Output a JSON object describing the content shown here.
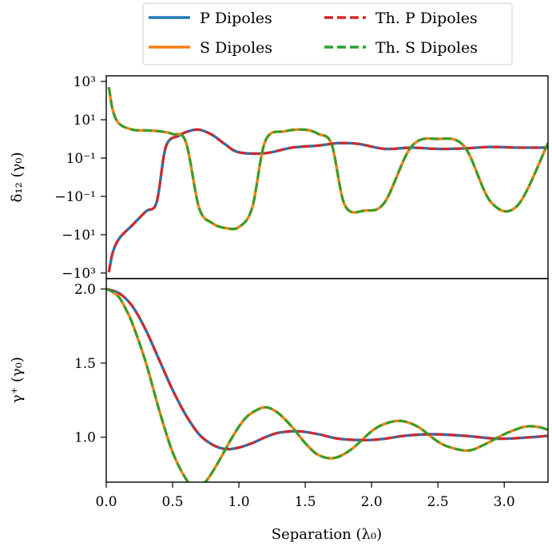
{
  "chart_data": [
    {
      "type": "line",
      "panel": "top",
      "ylabel": "δ₁₂ (γ₀)",
      "yscale": "symlog",
      "ylim": [
        -1000,
        1000
      ],
      "xlim": [
        0,
        3.33
      ],
      "yticks": [
        {
          "value": 1000,
          "label": "10³"
        },
        {
          "value": 10,
          "label": "10¹"
        },
        {
          "value": 0.1,
          "label": "10⁻¹"
        },
        {
          "value": -0.1,
          "label": "−10⁻¹"
        },
        {
          "value": -10,
          "label": "−10¹"
        },
        {
          "value": -1000,
          "label": "−10³"
        }
      ],
      "grid": false,
      "series": [
        {
          "name": "P Dipoles",
          "color": "#1f77b4",
          "style": "solid",
          "x": [
            0.02,
            0.05,
            0.1,
            0.2,
            0.3,
            0.38,
            0.45,
            0.55,
            0.62,
            0.7,
            0.8,
            0.9,
            1.0,
            1.2,
            1.4,
            1.6,
            1.75,
            1.9,
            2.1,
            2.3,
            2.5,
            2.7,
            2.9,
            3.1,
            3.33
          ],
          "y": [
            -900,
            -80,
            -15,
            -3,
            -0.6,
            -0.2,
            0.4,
            1.5,
            2.5,
            3.0,
            1.6,
            0.5,
            0.2,
            0.18,
            0.35,
            0.45,
            0.6,
            0.55,
            0.3,
            0.35,
            0.3,
            0.32,
            0.38,
            0.35,
            0.35
          ]
        },
        {
          "name": "S Dipoles",
          "color": "#ff7f0e",
          "style": "solid",
          "x": [
            0.02,
            0.05,
            0.1,
            0.2,
            0.3,
            0.4,
            0.5,
            0.6,
            0.7,
            0.8,
            0.9,
            1.0,
            1.1,
            1.2,
            1.35,
            1.5,
            1.6,
            1.7,
            1.8,
            1.95,
            2.1,
            2.3,
            2.5,
            2.7,
            2.9,
            3.1,
            3.33
          ],
          "y": [
            500,
            30,
            6,
            3,
            2.8,
            2.5,
            1.8,
            0.7,
            -0.4,
            -2.5,
            -4.5,
            -4,
            -0.4,
            0.8,
            2.5,
            3.0,
            1.8,
            0.5,
            -0.3,
            -0.55,
            -0.2,
            0.4,
            1.0,
            0.4,
            -0.2,
            -0.3,
            0.6
          ]
        },
        {
          "name": "Th. P Dipoles",
          "color": "#d62728",
          "style": "dashed",
          "follows": "P Dipoles"
        },
        {
          "name": "Th. S Dipoles",
          "color": "#2ca02c",
          "style": "dashed",
          "follows": "S Dipoles"
        }
      ]
    },
    {
      "type": "line",
      "panel": "bottom",
      "xlabel": "Separation (λ₀)",
      "ylabel": "γ⁺ (γ₀)",
      "xlim": [
        0,
        3.33
      ],
      "ylim": [
        0.6,
        2.0
      ],
      "xticks": [
        "0.0",
        "0.5",
        "1.0",
        "1.5",
        "2.0",
        "2.5",
        "3.0"
      ],
      "yticks": [
        "1.0",
        "1.5",
        "2.0"
      ],
      "grid": false,
      "series": [
        {
          "name": "P Dipoles",
          "color": "#1f77b4",
          "style": "solid",
          "x": [
            0.0,
            0.1,
            0.2,
            0.3,
            0.4,
            0.5,
            0.6,
            0.7,
            0.8,
            0.9,
            1.0,
            1.1,
            1.2,
            1.3,
            1.45,
            1.6,
            1.75,
            1.95,
            2.1,
            2.25,
            2.45,
            2.7,
            2.95,
            3.2,
            3.33
          ],
          "y": [
            2.0,
            1.97,
            1.88,
            1.72,
            1.52,
            1.32,
            1.15,
            1.02,
            0.95,
            0.92,
            0.93,
            0.96,
            1.0,
            1.03,
            1.04,
            1.02,
            0.99,
            0.98,
            0.99,
            1.01,
            1.02,
            1.01,
            0.99,
            1.0,
            1.01
          ]
        },
        {
          "name": "S Dipoles",
          "color": "#ff7f0e",
          "style": "solid",
          "x": [
            0.0,
            0.05,
            0.1,
            0.15,
            0.2,
            0.3,
            0.4,
            0.5,
            0.6,
            0.67,
            0.75,
            0.85,
            0.95,
            1.05,
            1.15,
            1.22,
            1.3,
            1.4,
            1.5,
            1.6,
            1.72,
            1.85,
            2.0,
            2.1,
            2.22,
            2.35,
            2.5,
            2.6,
            2.73,
            2.85,
            3.0,
            3.15,
            3.25,
            3.33
          ],
          "y": [
            2.0,
            1.98,
            1.94,
            1.86,
            1.76,
            1.5,
            1.18,
            0.9,
            0.72,
            0.66,
            0.7,
            0.84,
            1.0,
            1.13,
            1.19,
            1.2,
            1.16,
            1.07,
            0.96,
            0.88,
            0.86,
            0.92,
            1.04,
            1.09,
            1.11,
            1.07,
            0.97,
            0.93,
            0.91,
            0.95,
            1.02,
            1.07,
            1.07,
            1.05
          ]
        },
        {
          "name": "Th. P Dipoles",
          "color": "#d62728",
          "style": "dashed",
          "follows": "P Dipoles"
        },
        {
          "name": "Th. S Dipoles",
          "color": "#2ca02c",
          "style": "dashed",
          "follows": "S Dipoles"
        }
      ]
    }
  ],
  "legend": {
    "placement": "top-center",
    "entries": [
      {
        "label": "P Dipoles",
        "color": "#1f77b4",
        "style": "solid"
      },
      {
        "label": "S Dipoles",
        "color": "#ff7f0e",
        "style": "solid"
      },
      {
        "label": "Th. P Dipoles",
        "color": "#d62728",
        "style": "dashed"
      },
      {
        "label": "Th. S Dipoles",
        "color": "#2ca02c",
        "style": "dashed"
      }
    ]
  }
}
